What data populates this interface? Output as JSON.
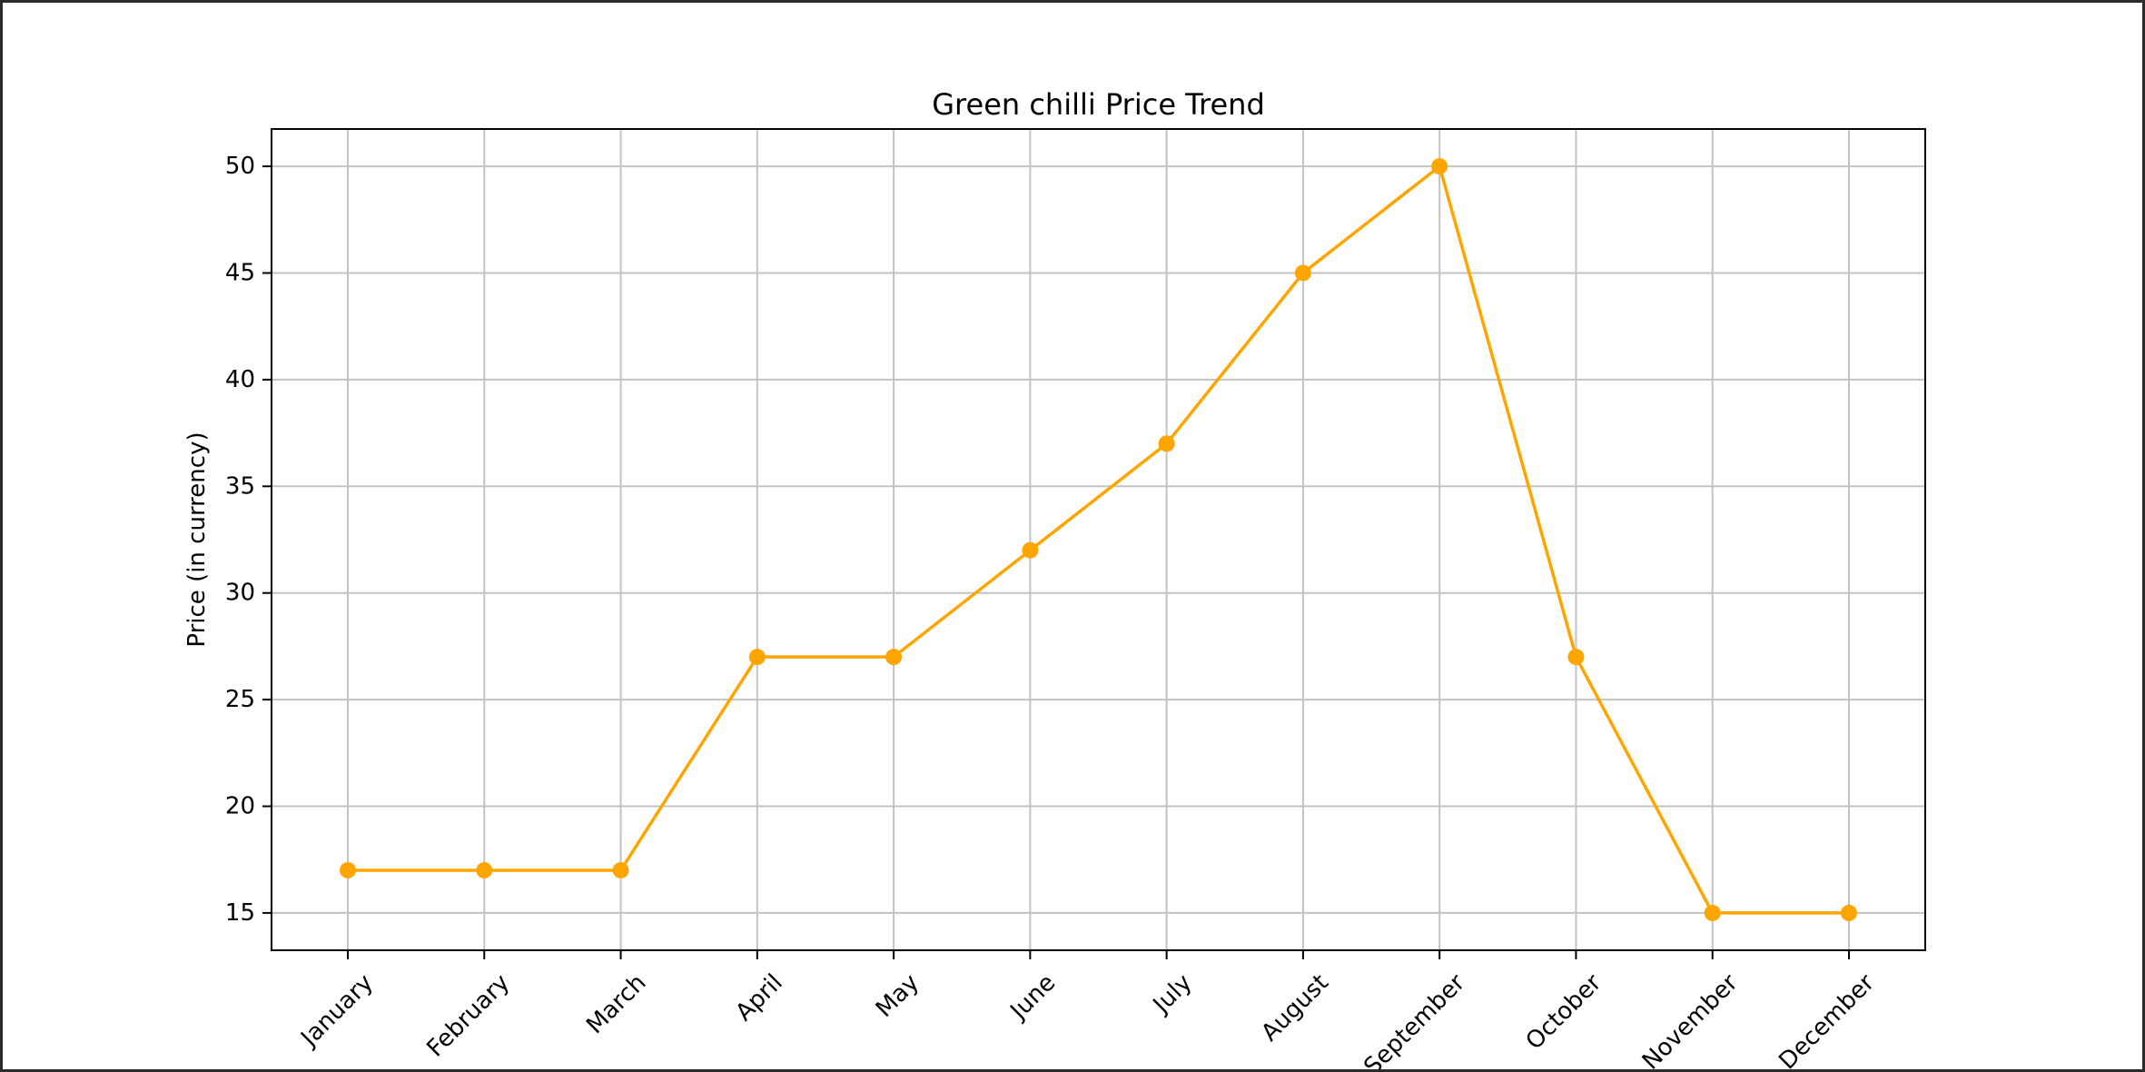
{
  "chart_data": {
    "type": "line",
    "title": "Green chilli Price Trend",
    "xlabel": "",
    "ylabel": "Price (in currency)",
    "categories": [
      "January",
      "February",
      "March",
      "April",
      "May",
      "June",
      "July",
      "August",
      "September",
      "October",
      "November",
      "December"
    ],
    "series": [
      {
        "values": [
          17,
          17,
          17,
          27,
          27,
          32,
          37,
          45,
          50,
          27,
          15,
          15
        ],
        "color": "#FFA500",
        "marker": "circle"
      }
    ],
    "y_ticks": [
      15,
      20,
      25,
      30,
      35,
      40,
      45,
      50
    ],
    "ylim": [
      13.25,
      51.75
    ],
    "grid": true,
    "legend": "none",
    "x_tick_rotation": 45
  }
}
